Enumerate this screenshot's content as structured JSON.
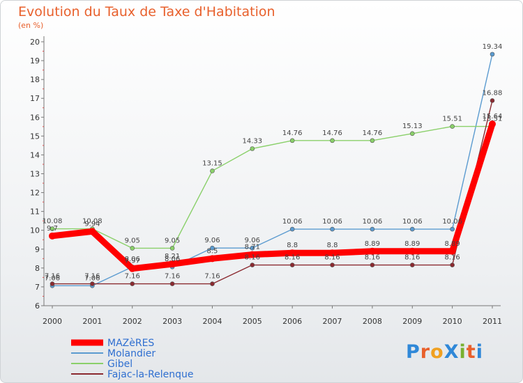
{
  "title": "Evolution du Taux de Taxe d'Habitation",
  "subtitle": "(en %)",
  "logo": {
    "text": "ProXiti",
    "colors": [
      "#2f88d8",
      "#e8602c",
      "#f0a020",
      "#2f88d8",
      "#78b030",
      "#e8602c",
      "#2f88d8"
    ]
  },
  "chart_data": {
    "type": "line",
    "title": "Evolution du Taux de Taxe d'Habitation",
    "ylabel": "(en %)",
    "xlabel": "",
    "x": [
      "2000",
      "2001",
      "2002",
      "2003",
      "2004",
      "2005",
      "2006",
      "2007",
      "2008",
      "2009",
      "2010",
      "2011"
    ],
    "ylim": [
      6,
      20
    ],
    "yticks": [
      "6",
      "7",
      "8",
      "9",
      "10",
      "11",
      "12",
      "13",
      "14",
      "15",
      "16",
      "17",
      "18",
      "19",
      "20"
    ],
    "grid": false,
    "legend_position": "bottom-left",
    "series": [
      {
        "name": "Molandier",
        "color": "#5b9bd0",
        "values": [
          7.06,
          7.06,
          8.06,
          8.06,
          9.06,
          9.06,
          10.06,
          10.06,
          10.06,
          10.06,
          10.06,
          19.34
        ],
        "labels": [
          "7.06",
          "7.06",
          "8.06",
          "8.06",
          "9.06",
          "9.06",
          "10.06",
          "10.06",
          "10.06",
          "10.06",
          "10.06",
          "19.34"
        ]
      },
      {
        "name": "Gibel",
        "color": "#8ad06a",
        "values": [
          10.08,
          10.08,
          9.05,
          9.05,
          13.15,
          14.33,
          14.76,
          14.76,
          14.76,
          15.13,
          15.51,
          15.51
        ],
        "labels": [
          "10.08",
          "10.08",
          "9.05",
          "9.05",
          "13.15",
          "14.33",
          "14.76",
          "14.76",
          "14.76",
          "15.13",
          "15.51",
          "15.51"
        ]
      },
      {
        "name": "Fajac-la-Relenque",
        "color": "#8b2a30",
        "values": [
          7.16,
          7.16,
          7.16,
          7.16,
          7.16,
          8.16,
          8.16,
          8.16,
          8.16,
          8.16,
          8.16,
          16.88
        ],
        "labels": [
          "7.16",
          "7.16",
          "7.16",
          "7.16",
          "7.16",
          "8.16",
          "8.16",
          "8.16",
          "8.16",
          "8.16",
          "8.16",
          "16.88"
        ]
      },
      {
        "name": "MAZèRES",
        "color": "#ff0000",
        "values": [
          9.7,
          9.94,
          7.97,
          8.21,
          8.5,
          8.71,
          8.8,
          8.8,
          8.89,
          8.89,
          8.89,
          15.64
        ],
        "labels": [
          "9.7",
          "9.94",
          "7.97",
          "8.21",
          "8.5",
          "8.71",
          "8.8",
          "8.8",
          "8.89",
          "8.89",
          "8.89",
          "15.64"
        ]
      }
    ],
    "legend_order": [
      "MAZèRES",
      "Molandier",
      "Gibel",
      "Fajac-la-Relenque"
    ]
  }
}
